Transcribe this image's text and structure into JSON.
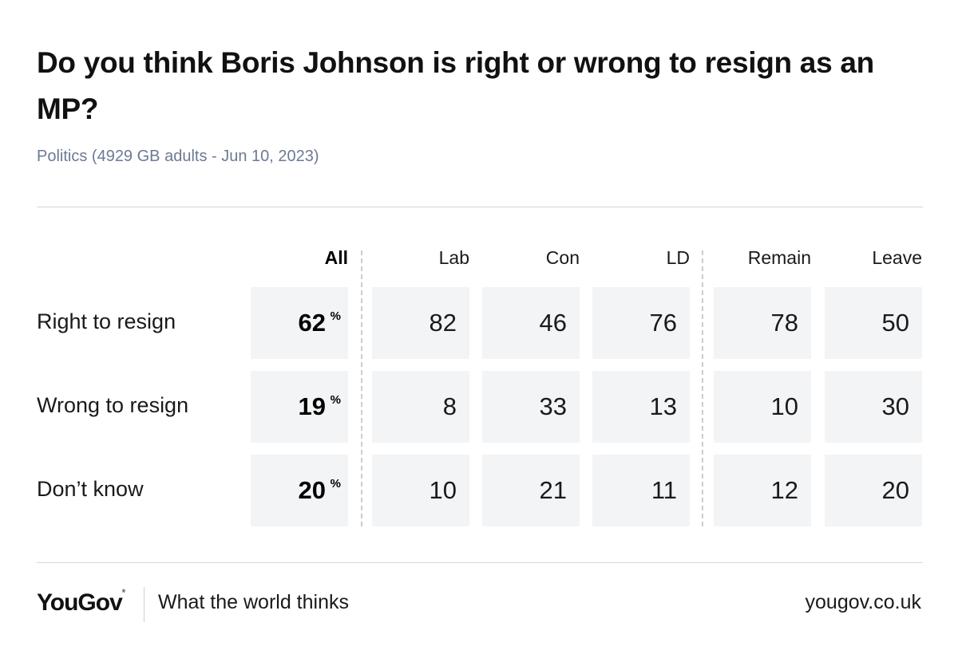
{
  "title": "Do you think Boris Johnson is right or wrong to resign as an MP?",
  "subtitle": "Politics (4929 GB adults - Jun 10, 2023)",
  "chart_data": {
    "type": "table",
    "columns": [
      "All",
      "Lab",
      "Con",
      "LD",
      "Remain",
      "Leave"
    ],
    "percent_suffix": "%",
    "rows": [
      {
        "label": "Right to resign",
        "values": [
          62,
          82,
          46,
          76,
          78,
          50
        ]
      },
      {
        "label": "Wrong to resign",
        "values": [
          19,
          8,
          33,
          13,
          10,
          30
        ]
      },
      {
        "label": "Don’t know",
        "values": [
          20,
          10,
          21,
          11,
          12,
          20
        ]
      }
    ]
  },
  "footer": {
    "brand": "YouGov",
    "tagline": "What the world thinks",
    "url": "yougov.co.uk"
  }
}
